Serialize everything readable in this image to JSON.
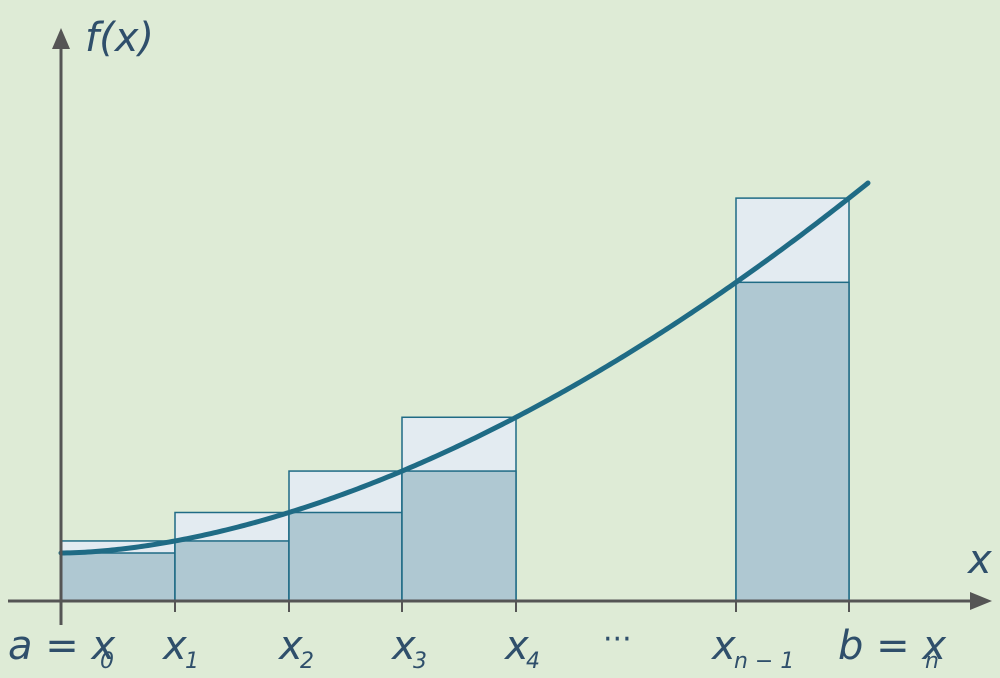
{
  "labels": {
    "y_axis": "f(x)",
    "x_axis": "x",
    "ellipsis": "···",
    "ticks": [
      {
        "main": "a = x",
        "sub": "0"
      },
      {
        "main": "x",
        "sub": "1"
      },
      {
        "main": "x",
        "sub": "2"
      },
      {
        "main": "x",
        "sub": "3"
      },
      {
        "main": "x",
        "sub": "4"
      },
      {
        "main": "x",
        "sub": "n − 1"
      },
      {
        "main": "b = x",
        "sub": "n"
      }
    ]
  },
  "colors": {
    "background": "#deebd6",
    "axis": "#555555",
    "curve": "#1f6b85",
    "rect_outline": "#1f6b85",
    "lower_fill": "#afc8d2",
    "upper_fill": "#e3ebf1",
    "text": "#2f4f6b"
  },
  "diagram": {
    "type": "riemann-sum-upper-lower",
    "function": "increasing convex curve",
    "partitions": [
      {
        "left": "x0",
        "right": "x1"
      },
      {
        "left": "x1",
        "right": "x2"
      },
      {
        "left": "x2",
        "right": "x3"
      },
      {
        "left": "x3",
        "right": "x4"
      },
      {
        "left": "xn-1",
        "right": "xn"
      }
    ]
  }
}
